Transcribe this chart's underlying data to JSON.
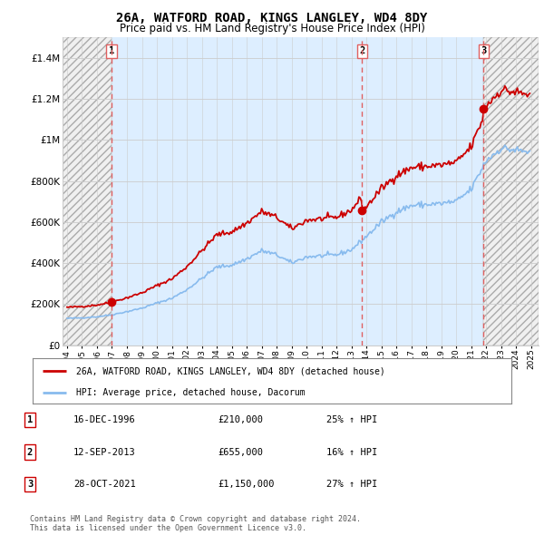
{
  "title": "26A, WATFORD ROAD, KINGS LANGLEY, WD4 8DY",
  "subtitle": "Price paid vs. HM Land Registry's House Price Index (HPI)",
  "ylim": [
    0,
    1500000
  ],
  "yticks": [
    0,
    200000,
    400000,
    600000,
    800000,
    1000000,
    1200000,
    1400000
  ],
  "ytick_labels": [
    "£0",
    "£200K",
    "£400K",
    "£600K",
    "£800K",
    "£1M",
    "£1.2M",
    "£1.4M"
  ],
  "xlim_left": 1993.7,
  "xlim_right": 2025.5,
  "sale_dates_num": [
    1996.96,
    2013.71,
    2021.83
  ],
  "sale_prices": [
    210000,
    655000,
    1150000
  ],
  "sale_labels": [
    "1",
    "2",
    "3"
  ],
  "vline_color": "#e06060",
  "sale_color": "#cc0000",
  "hpi_color": "#88bbee",
  "price_color": "#cc0000",
  "bg_hatch_color": "#aaaaaa",
  "bg_blue_color": "#ddeeff",
  "grid_color": "#cccccc",
  "legend_label_price": "26A, WATFORD ROAD, KINGS LANGLEY, WD4 8DY (detached house)",
  "legend_label_hpi": "HPI: Average price, detached house, Dacorum",
  "table_data": [
    [
      "1",
      "16-DEC-1996",
      "£210,000",
      "25% ↑ HPI"
    ],
    [
      "2",
      "12-SEP-2013",
      "£655,000",
      "16% ↑ HPI"
    ],
    [
      "3",
      "28-OCT-2021",
      "£1,150,000",
      "27% ↑ HPI"
    ]
  ],
  "footer": "Contains HM Land Registry data © Crown copyright and database right 2024.\nThis data is licensed under the Open Government Licence v3.0."
}
